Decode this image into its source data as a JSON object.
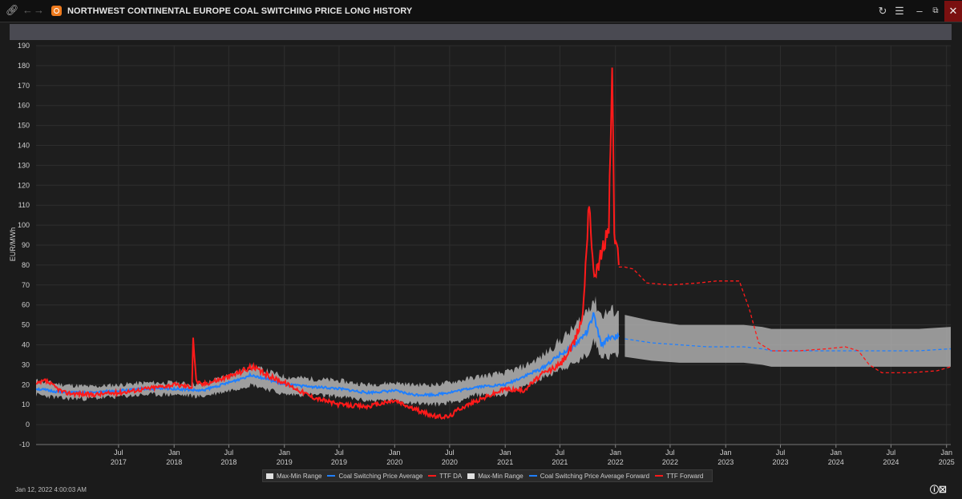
{
  "window": {
    "title": "NORTHWEST CONTINENTAL EUROPE COAL SWITCHING PRICE LONG HISTORY",
    "timestamp": "Jan 12, 2022 4:00:03 AM",
    "link_icon": "link-icon",
    "back_icon": "arrow-left-icon",
    "forward_icon": "arrow-right-icon",
    "refresh_icon": "refresh-icon",
    "menu_icon": "hamburger-menu-icon",
    "minimize_icon": "minimize-icon",
    "restore_icon": "restore-icon",
    "close_icon": "close-icon",
    "close_color": "#7a1010"
  },
  "chart_data": {
    "type": "line",
    "ylabel": "EUR/MWh",
    "ylim": [
      -10,
      190
    ],
    "yticks": [
      -10,
      0,
      10,
      20,
      30,
      40,
      50,
      60,
      70,
      80,
      90,
      100,
      110,
      120,
      130,
      140,
      150,
      160,
      170,
      180,
      190
    ],
    "xlim": [
      "2016-10-01",
      "2025-01-15"
    ],
    "xticks": [
      {
        "month": "Jul",
        "year": "2017",
        "date": "2017-07-01"
      },
      {
        "month": "Jan",
        "year": "2018",
        "date": "2018-01-01"
      },
      {
        "month": "Jul",
        "year": "2018",
        "date": "2018-07-01"
      },
      {
        "month": "Jan",
        "year": "2019",
        "date": "2019-01-01"
      },
      {
        "month": "Jul",
        "year": "2019",
        "date": "2019-07-01"
      },
      {
        "month": "Jan",
        "year": "2020",
        "date": "2020-01-01"
      },
      {
        "month": "Jul",
        "year": "2020",
        "date": "2020-07-01"
      },
      {
        "month": "Jan",
        "year": "2021",
        "date": "2021-01-01"
      },
      {
        "month": "Jul",
        "year": "2021",
        "date": "2021-07-01"
      },
      {
        "month": "Jan",
        "year": "2022",
        "date": "2022-01-01"
      },
      {
        "month": "Jul",
        "year": "2022",
        "date": "2022-07-01"
      },
      {
        "month": "Jan",
        "year": "2023",
        "date": "2023-01-01"
      },
      {
        "month": "Jul",
        "year": "2023",
        "date": "2023-07-01"
      },
      {
        "month": "Jan",
        "year": "2024",
        "date": "2024-01-01"
      },
      {
        "month": "Jul",
        "year": "2024",
        "date": "2024-07-01"
      },
      {
        "month": "Jan",
        "year": "2025",
        "date": "2025-01-01"
      }
    ],
    "grid": true,
    "legend_position": "bottom",
    "colors": {
      "range": "#b5b5b5",
      "average": "#1f7fff",
      "ttf": "#ff1a1a"
    },
    "series": [
      {
        "name": "Max-Min Range",
        "kind": "band",
        "x": [
          "2016-10-01",
          "2017-01-01",
          "2017-04-01",
          "2017-07-01",
          "2017-10-01",
          "2018-01-01",
          "2018-04-01",
          "2018-07-01",
          "2018-09-15",
          "2018-11-01",
          "2019-01-01",
          "2019-04-01",
          "2019-07-01",
          "2019-10-01",
          "2020-01-01",
          "2020-03-01",
          "2020-05-15",
          "2020-08-01",
          "2020-10-01",
          "2021-01-01",
          "2021-03-01",
          "2021-05-01",
          "2021-07-01",
          "2021-08-15",
          "2021-10-01",
          "2021-10-20",
          "2021-11-15",
          "2021-12-15",
          "2022-01-12"
        ],
        "upper": [
          22,
          20,
          19,
          20,
          21,
          21,
          20,
          25,
          29,
          27,
          24,
          23,
          22,
          20,
          21,
          20,
          20,
          22,
          24,
          26,
          29,
          34,
          42,
          48,
          58,
          63,
          55,
          57,
          57
        ],
        "lower": [
          15,
          13,
          13,
          14,
          15,
          15,
          14,
          17,
          20,
          18,
          15,
          15,
          14,
          12,
          12,
          11,
          10,
          12,
          15,
          15,
          19,
          23,
          28,
          30,
          35,
          42,
          35,
          34,
          36
        ]
      },
      {
        "name": "Coal Switching Price Average",
        "kind": "line",
        "x": [
          "2016-10-01",
          "2017-01-01",
          "2017-04-01",
          "2017-07-01",
          "2017-10-01",
          "2018-01-01",
          "2018-04-01",
          "2018-07-01",
          "2018-09-15",
          "2018-11-01",
          "2019-01-01",
          "2019-04-01",
          "2019-07-01",
          "2019-10-01",
          "2020-01-01",
          "2020-03-01",
          "2020-05-15",
          "2020-08-01",
          "2020-10-01",
          "2021-01-01",
          "2021-03-01",
          "2021-05-01",
          "2021-07-01",
          "2021-08-15",
          "2021-10-01",
          "2021-10-20",
          "2021-11-15",
          "2021-12-15",
          "2022-01-12"
        ],
        "y": [
          18,
          16,
          16,
          17,
          18,
          18,
          17,
          21,
          25,
          23,
          20,
          19,
          18,
          16,
          17,
          15,
          15,
          17,
          19,
          20,
          24,
          28,
          35,
          39,
          47,
          55,
          40,
          44,
          44
        ]
      },
      {
        "name": "TTF DA",
        "kind": "line",
        "x": [
          "2016-10-01",
          "2016-11-01",
          "2017-01-01",
          "2017-04-01",
          "2017-07-01",
          "2017-10-01",
          "2018-01-01",
          "2018-03-01",
          "2018-03-05",
          "2018-03-15",
          "2018-04-01",
          "2018-07-01",
          "2018-09-15",
          "2018-11-01",
          "2019-01-01",
          "2019-04-01",
          "2019-07-01",
          "2019-10-01",
          "2020-01-01",
          "2020-03-01",
          "2020-05-15",
          "2020-07-01",
          "2020-08-01",
          "2020-10-01",
          "2021-01-01",
          "2021-03-01",
          "2021-05-01",
          "2021-07-01",
          "2021-08-15",
          "2021-09-15",
          "2021-10-06",
          "2021-10-20",
          "2021-11-15",
          "2021-12-10",
          "2021-12-21",
          "2021-12-28",
          "2022-01-05",
          "2022-01-12"
        ],
        "y": [
          20,
          22,
          16,
          15,
          16,
          18,
          20,
          19,
          44,
          22,
          20,
          24,
          29,
          25,
          21,
          14,
          10,
          9,
          12,
          8,
          4,
          4,
          8,
          12,
          18,
          17,
          25,
          30,
          40,
          55,
          115,
          75,
          85,
          100,
          182,
          95,
          90,
          80
        ]
      },
      {
        "name": "Max-Min Range",
        "kind": "band",
        "x": [
          "2022-02-01",
          "2022-05-01",
          "2022-08-01",
          "2022-11-01",
          "2023-01-01",
          "2023-03-01",
          "2023-05-01",
          "2023-06-01",
          "2023-09-01",
          "2024-01-01",
          "2024-06-01",
          "2024-10-01",
          "2025-01-15"
        ],
        "upper": [
          55,
          52,
          50,
          50,
          50,
          50,
          49,
          48,
          48,
          48,
          48,
          48,
          49
        ],
        "lower": [
          34,
          32,
          31,
          31,
          31,
          31,
          30,
          29,
          29,
          29,
          29,
          29,
          29
        ]
      },
      {
        "name": "Coal Switching Price Average Forward",
        "kind": "dashed",
        "x": [
          "2022-02-01",
          "2022-05-01",
          "2022-08-01",
          "2022-11-01",
          "2023-01-01",
          "2023-03-01",
          "2023-05-01",
          "2023-06-01",
          "2023-09-01",
          "2024-01-01",
          "2024-06-01",
          "2024-10-01",
          "2025-01-15"
        ],
        "y": [
          43,
          41,
          40,
          39,
          39,
          39,
          38,
          37,
          37,
          37,
          37,
          37,
          38
        ]
      },
      {
        "name": "TTF Forward",
        "kind": "dashed",
        "x": [
          "2022-01-12",
          "2022-02-01",
          "2022-03-01",
          "2022-04-15",
          "2022-07-01",
          "2022-10-01",
          "2022-12-01",
          "2023-01-01",
          "2023-02-15",
          "2023-03-20",
          "2023-04-20",
          "2023-06-01",
          "2023-09-01",
          "2023-12-01",
          "2024-02-01",
          "2024-03-15",
          "2024-04-20",
          "2024-06-01",
          "2024-09-01",
          "2024-12-01",
          "2025-01-15"
        ],
        "y": [
          79,
          79,
          78,
          71,
          70,
          71,
          72,
          72,
          72,
          58,
          41,
          37,
          37,
          38,
          39,
          37,
          30,
          26,
          26,
          27,
          29
        ]
      }
    ]
  },
  "legend": [
    {
      "label": "Max-Min Range",
      "style": "box",
      "color": "#e0e0e0"
    },
    {
      "label": "Coal Switching Price Average",
      "style": "line",
      "color": "#1f7fff"
    },
    {
      "label": "TTF DA",
      "style": "line",
      "color": "#ff1a1a"
    },
    {
      "label": "Max-Min Range",
      "style": "box",
      "color": "#e0e0e0"
    },
    {
      "label": "Coal Switching Price Average Forward",
      "style": "dash",
      "color": "#1f7fff"
    },
    {
      "label": "TTF Forward",
      "style": "dash",
      "color": "#ff1a1a"
    }
  ]
}
